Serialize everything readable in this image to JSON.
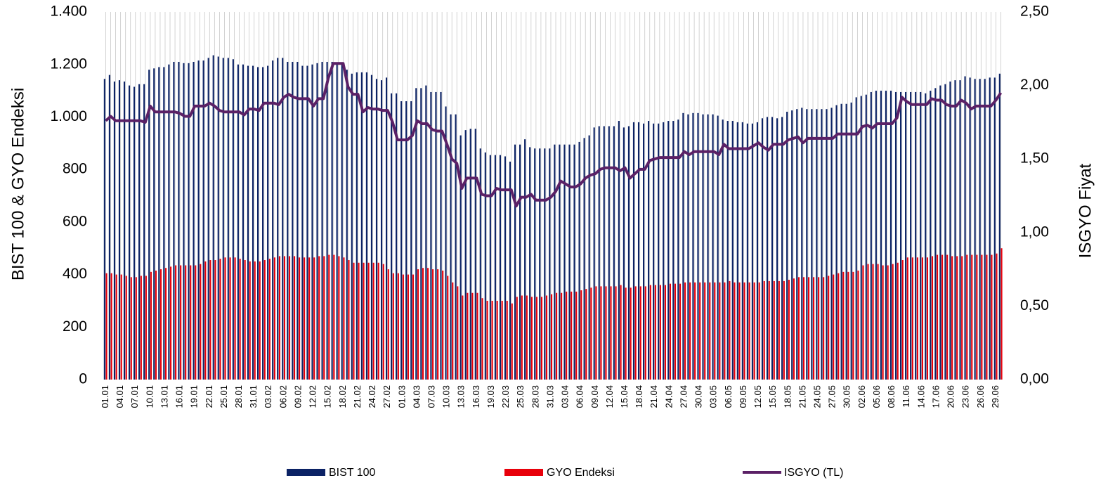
{
  "chart_data": {
    "type": "bar",
    "y_label": "BIST 100 & GYO Endeksi",
    "y2_label": "ISGYO Fiyat",
    "categories": [
      "01.01",
      null,
      null,
      "04.01",
      null,
      null,
      "07.01",
      null,
      null,
      "10.01",
      null,
      null,
      "13.01",
      null,
      null,
      "16.01",
      null,
      null,
      "19.01",
      null,
      null,
      "22.01",
      null,
      null,
      "25.01",
      null,
      null,
      "28.01",
      null,
      null,
      "31.01",
      null,
      null,
      "03.02",
      null,
      null,
      "06.02",
      null,
      null,
      "09.02",
      null,
      null,
      "12.02",
      null,
      null,
      "15.02",
      null,
      null,
      "18.02",
      null,
      null,
      "21.02",
      null,
      null,
      "24.02",
      null,
      null,
      "27.02",
      null,
      null,
      "01.03",
      null,
      null,
      "04.03",
      null,
      null,
      "07.03",
      null,
      null,
      "10.03",
      null,
      null,
      "13.03",
      null,
      null,
      "16.03",
      null,
      null,
      "19.03",
      null,
      null,
      "22.03",
      null,
      null,
      "25.03",
      null,
      null,
      "28.03",
      null,
      null,
      "31.03",
      null,
      null,
      "03.04",
      null,
      null,
      "06.04",
      null,
      null,
      "09.04",
      null,
      null,
      "12.04",
      null,
      null,
      "15.04",
      null,
      null,
      "18.04",
      null,
      null,
      "21.04",
      null,
      null,
      "24.04",
      null,
      null,
      "27.04",
      null,
      null,
      "30.04",
      null,
      null,
      "03.05",
      null,
      null,
      "06.05",
      null,
      null,
      "09.05",
      null,
      null,
      "12.05",
      null,
      null,
      "15.05",
      null,
      null,
      "18.05",
      null,
      null,
      "21.05",
      null,
      null,
      "24.05",
      null,
      null,
      "27.05",
      null,
      null,
      "30.05",
      null,
      null,
      "02.06",
      null,
      null,
      "05.06",
      null,
      null,
      "08.06",
      null,
      null,
      "11.06",
      null,
      null,
      "14.06",
      null,
      null,
      "17.06",
      null,
      null,
      "20.06",
      null,
      null,
      "23.06",
      null,
      null,
      "26.06",
      null,
      null,
      "29.06",
      null
    ],
    "series": [
      {
        "name": "BIST 100",
        "type": "bar",
        "color": "#0b2265",
        "values": [
          1145,
          1160,
          1135,
          1140,
          1135,
          1120,
          1115,
          1125,
          1125,
          1180,
          1185,
          1190,
          1190,
          1200,
          1210,
          1210,
          1205,
          1205,
          1210,
          1215,
          1215,
          1225,
          1235,
          1230,
          1225,
          1225,
          1220,
          1200,
          1200,
          1195,
          1195,
          1190,
          1190,
          1195,
          1215,
          1225,
          1225,
          1210,
          1210,
          1210,
          1195,
          1195,
          1200,
          1205,
          1210,
          1210,
          1210,
          1205,
          1200,
          1180,
          1165,
          1170,
          1170,
          1170,
          1160,
          1145,
          1140,
          1150,
          1090,
          1090,
          1060,
          1060,
          1060,
          1110,
          1110,
          1120,
          1095,
          1095,
          1095,
          1040,
          1010,
          1010,
          930,
          950,
          955,
          955,
          880,
          865,
          855,
          855,
          855,
          850,
          830,
          895,
          895,
          915,
          885,
          880,
          880,
          880,
          880,
          895,
          895,
          895,
          895,
          895,
          905,
          920,
          930,
          960,
          965,
          965,
          965,
          965,
          985,
          960,
          965,
          980,
          980,
          975,
          985,
          975,
          975,
          980,
          985,
          985,
          990,
          1015,
          1010,
          1015,
          1015,
          1010,
          1010,
          1010,
          1005,
          990,
          985,
          985,
          980,
          980,
          975,
          975,
          980,
          995,
          1000,
          1000,
          995,
          1000,
          1020,
          1025,
          1030,
          1035,
          1030,
          1030,
          1030,
          1030,
          1030,
          1035,
          1045,
          1050,
          1050,
          1055,
          1075,
          1080,
          1085,
          1095,
          1100,
          1100,
          1100,
          1100,
          1095,
          1095,
          1095,
          1095,
          1095,
          1095,
          1090,
          1100,
          1110,
          1120,
          1125,
          1135,
          1140,
          1140,
          1155,
          1150,
          1145,
          1145,
          1145,
          1150,
          1150,
          1165
        ]
      },
      {
        "name": "GYO Endeksi",
        "type": "bar",
        "color": "#e8000b",
        "values": [
          405,
          405,
          400,
          400,
          395,
          390,
          390,
          395,
          395,
          410,
          415,
          420,
          425,
          430,
          435,
          435,
          435,
          435,
          435,
          440,
          450,
          455,
          455,
          460,
          465,
          465,
          465,
          460,
          455,
          450,
          450,
          450,
          455,
          460,
          465,
          470,
          470,
          470,
          470,
          465,
          465,
          465,
          465,
          470,
          470,
          475,
          475,
          470,
          465,
          455,
          445,
          445,
          445,
          445,
          445,
          445,
          440,
          420,
          405,
          405,
          400,
          400,
          400,
          420,
          425,
          425,
          420,
          420,
          415,
          395,
          370,
          355,
          320,
          330,
          330,
          330,
          310,
          300,
          300,
          300,
          300,
          300,
          290,
          315,
          320,
          320,
          315,
          315,
          315,
          320,
          325,
          330,
          330,
          335,
          335,
          335,
          340,
          345,
          350,
          355,
          355,
          355,
          355,
          355,
          360,
          350,
          350,
          355,
          355,
          355,
          360,
          360,
          360,
          360,
          365,
          365,
          365,
          370,
          370,
          370,
          370,
          370,
          370,
          370,
          370,
          370,
          375,
          370,
          370,
          370,
          370,
          370,
          370,
          375,
          375,
          375,
          375,
          375,
          380,
          385,
          390,
          390,
          390,
          390,
          390,
          390,
          395,
          400,
          405,
          410,
          410,
          410,
          415,
          435,
          440,
          440,
          440,
          435,
          435,
          440,
          445,
          455,
          465,
          465,
          465,
          465,
          465,
          470,
          475,
          475,
          475,
          470,
          470,
          470,
          475,
          475,
          475,
          475,
          475,
          475,
          480,
          500
        ]
      },
      {
        "name": "ISGYO (TL)",
        "type": "line",
        "axis": "y2",
        "color": "#5b2166",
        "values": [
          1.76,
          1.79,
          1.76,
          1.76,
          1.76,
          1.76,
          1.76,
          1.76,
          1.75,
          1.86,
          1.82,
          1.82,
          1.82,
          1.82,
          1.82,
          1.81,
          1.79,
          1.79,
          1.86,
          1.86,
          1.86,
          1.88,
          1.86,
          1.83,
          1.82,
          1.82,
          1.82,
          1.82,
          1.8,
          1.84,
          1.84,
          1.83,
          1.88,
          1.88,
          1.88,
          1.87,
          1.92,
          1.94,
          1.92,
          1.91,
          1.91,
          1.91,
          1.86,
          1.91,
          1.91,
          2.05,
          2.15,
          2.15,
          2.15,
          1.99,
          1.94,
          1.94,
          1.82,
          1.85,
          1.84,
          1.84,
          1.83,
          1.83,
          1.75,
          1.63,
          1.63,
          1.63,
          1.66,
          1.76,
          1.74,
          1.74,
          1.7,
          1.69,
          1.69,
          1.6,
          1.5,
          1.47,
          1.3,
          1.37,
          1.37,
          1.37,
          1.26,
          1.25,
          1.25,
          1.3,
          1.29,
          1.29,
          1.29,
          1.18,
          1.24,
          1.24,
          1.26,
          1.22,
          1.22,
          1.22,
          1.24,
          1.28,
          1.35,
          1.33,
          1.31,
          1.31,
          1.33,
          1.37,
          1.39,
          1.4,
          1.43,
          1.44,
          1.44,
          1.44,
          1.42,
          1.44,
          1.37,
          1.4,
          1.43,
          1.43,
          1.49,
          1.5,
          1.51,
          1.51,
          1.51,
          1.51,
          1.51,
          1.55,
          1.53,
          1.55,
          1.55,
          1.55,
          1.55,
          1.55,
          1.53,
          1.6,
          1.57,
          1.57,
          1.57,
          1.57,
          1.57,
          1.59,
          1.61,
          1.58,
          1.56,
          1.6,
          1.6,
          1.6,
          1.63,
          1.64,
          1.65,
          1.61,
          1.64,
          1.64,
          1.64,
          1.64,
          1.64,
          1.64,
          1.67,
          1.67,
          1.67,
          1.67,
          1.67,
          1.72,
          1.73,
          1.71,
          1.74,
          1.74,
          1.74,
          1.74,
          1.78,
          1.92,
          1.89,
          1.87,
          1.87,
          1.87,
          1.87,
          1.91,
          1.9,
          1.9,
          1.87,
          1.86,
          1.86,
          1.9,
          1.88,
          1.84,
          1.86,
          1.86,
          1.86,
          1.86,
          1.9,
          1.95
        ]
      }
    ],
    "ylim": [
      0,
      1400
    ],
    "yticks": [
      0,
      200,
      400,
      600,
      800,
      {
        "value": 1000,
        "label": "1.000"
      },
      {
        "value": 1200,
        "label": "1.200"
      },
      {
        "value": 1400,
        "label": "1.400"
      }
    ],
    "y2lim": [
      0,
      2.5
    ],
    "y2ticks": [
      {
        "value": 0,
        "label": "0,00"
      },
      {
        "value": 0.5,
        "label": "0,50"
      },
      {
        "value": 1,
        "label": "1,00"
      },
      {
        "value": 1.5,
        "label": "1,50"
      },
      {
        "value": 2,
        "label": "2,00"
      },
      {
        "value": 2.5,
        "label": "2,50"
      }
    ],
    "x_grid": true,
    "legend": "bottom"
  }
}
